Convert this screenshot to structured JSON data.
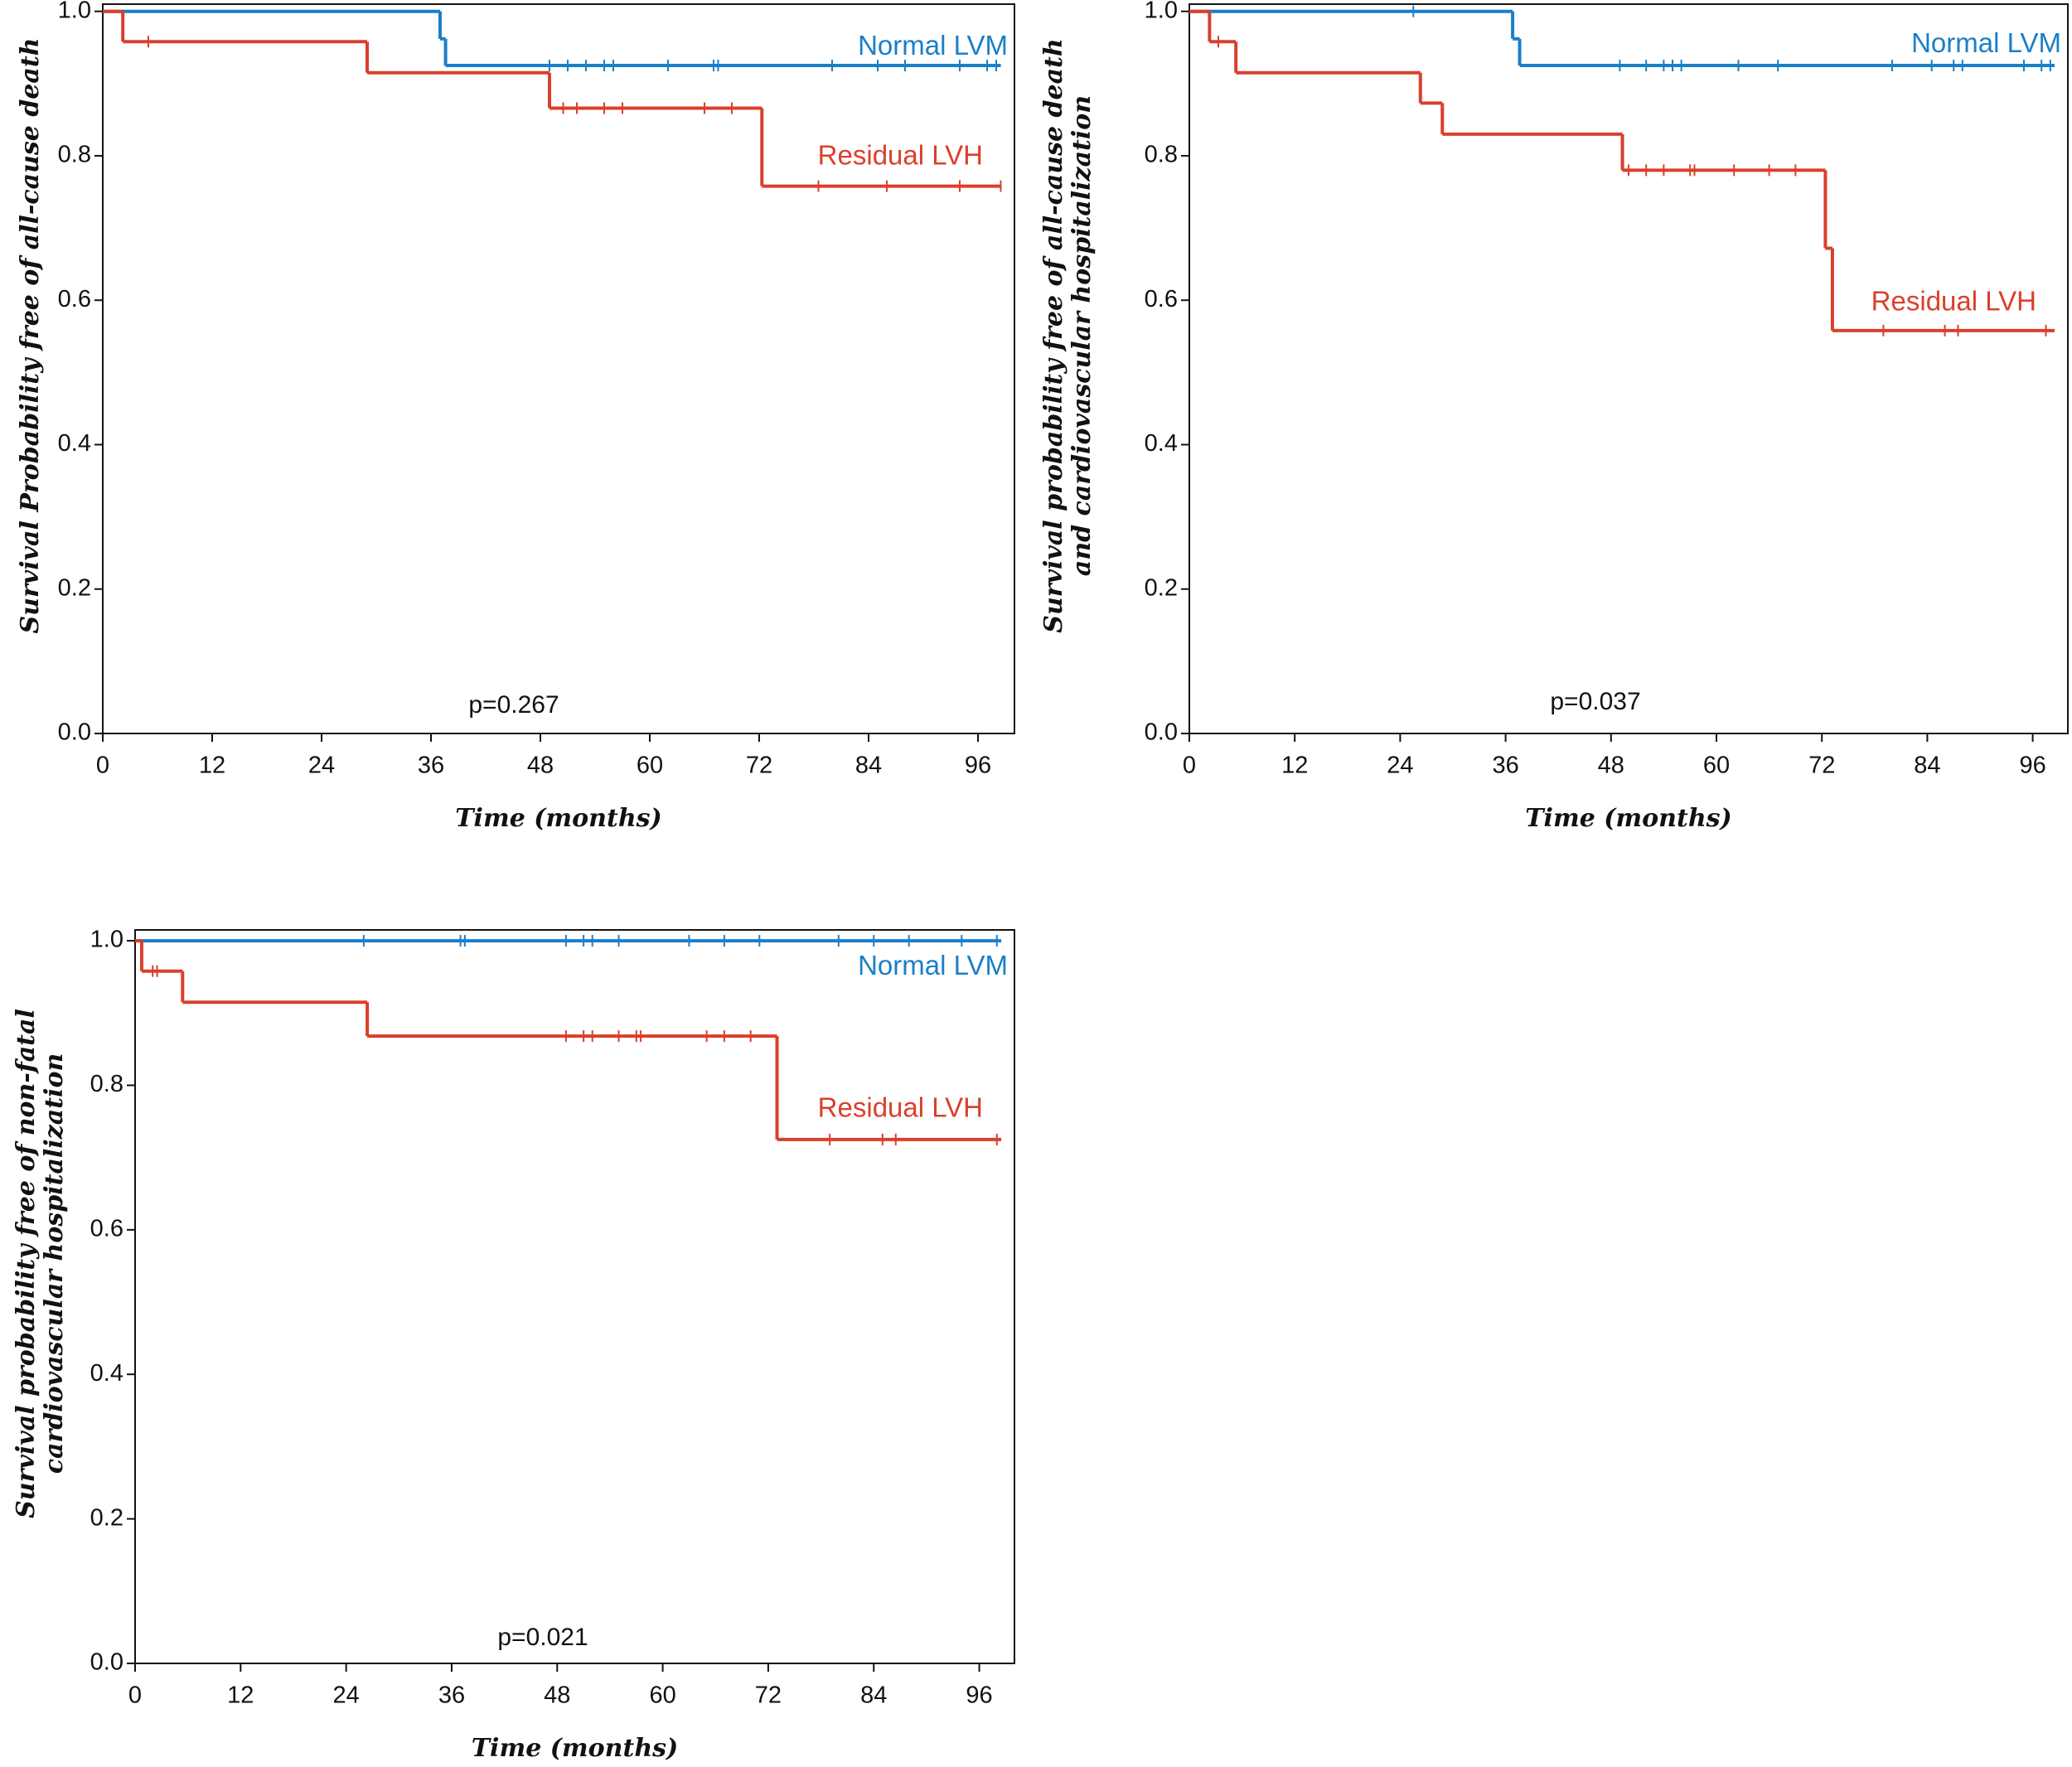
{
  "chart_data": [
    {
      "type": "line",
      "ylabel": [
        "Survival Probability free of all-cause death"
      ],
      "xlabel": "Time (months)",
      "annotation": "p=0.267",
      "xlim": [
        0,
        100
      ],
      "ylim": [
        0,
        1.01
      ],
      "xticks": [
        0,
        12,
        24,
        36,
        48,
        60,
        72,
        84,
        96
      ],
      "yticks": [
        {
          "value": 0,
          "label": "0.0"
        },
        0.2,
        0.4,
        0.6,
        0.8,
        {
          "value": 1,
          "label": "1.0"
        }
      ],
      "series": [
        {
          "name": "Normal LVM",
          "color": "#1a7fc9",
          "x": [
            0,
            37,
            37.6,
            98.5
          ],
          "values": [
            1,
            0.962,
            0.925,
            0.925
          ],
          "censored_x": [
            49,
            51,
            53,
            55,
            56,
            62,
            67,
            67.5,
            80,
            85,
            88,
            94,
            97,
            98
          ],
          "censored_values": [
            0.925,
            0.925,
            0.925,
            0.925,
            0.925,
            0.925,
            0.925,
            0.925,
            0.925,
            0.925,
            0.925,
            0.925,
            0.925,
            0.925
          ]
        },
        {
          "name": "Residual LVH",
          "color": "#d9402b",
          "x": [
            0,
            2.2,
            29,
            49,
            72.3,
            98.5
          ],
          "values": [
            1,
            0.958,
            0.915,
            0.866,
            0.758,
            0.758
          ],
          "censored_x": [
            5,
            50.5,
            52,
            55,
            57,
            66,
            69,
            78.5,
            86,
            94,
            98.5
          ],
          "censored_values": [
            0.958,
            0.866,
            0.866,
            0.866,
            0.866,
            0.866,
            0.866,
            0.758,
            0.758,
            0.758,
            0.758
          ]
        }
      ]
    },
    {
      "type": "line",
      "ylabel": [
        "Survival probability free of all-cause death",
        "and cardiovascular hospitalization"
      ],
      "xlabel": "Time (months)",
      "annotation": "p=0.037",
      "xlim": [
        0,
        100
      ],
      "ylim": [
        0,
        1.01
      ],
      "xticks": [
        0,
        12,
        24,
        36,
        48,
        60,
        72,
        84,
        96
      ],
      "yticks": [
        {
          "value": 0,
          "label": "0.0"
        },
        0.2,
        0.4,
        0.6,
        0.8,
        {
          "value": 1,
          "label": "1.0"
        }
      ],
      "series": [
        {
          "name": "Normal LVM",
          "color": "#1a7fc9",
          "x": [
            0,
            36.8,
            37.6,
            98.5
          ],
          "values": [
            1,
            0.962,
            0.925,
            0.925
          ],
          "censored_x": [
            25.5,
            49,
            52,
            54,
            55,
            56,
            62.5,
            67,
            80,
            84.5,
            87,
            88,
            95,
            97,
            98
          ],
          "censored_values": [
            1,
            0.925,
            0.925,
            0.925,
            0.925,
            0.925,
            0.925,
            0.925,
            0.925,
            0.925,
            0.925,
            0.925,
            0.925,
            0.925,
            0.925
          ]
        },
        {
          "name": "Residual LVH",
          "color": "#d9402b",
          "x": [
            0,
            2.3,
            5.3,
            26.3,
            28.8,
            49.3,
            72.4,
            73.2,
            98.5
          ],
          "values": [
            1,
            0.958,
            0.915,
            0.873,
            0.83,
            0.78,
            0.672,
            0.558,
            0.558
          ],
          "censored_x": [
            3.3,
            50,
            52,
            54,
            57,
            57.5,
            62,
            66,
            69,
            79,
            86,
            87.5,
            97.5
          ],
          "censored_values": [
            0.958,
            0.78,
            0.78,
            0.78,
            0.78,
            0.78,
            0.78,
            0.78,
            0.78,
            0.558,
            0.558,
            0.558,
            0.558
          ]
        }
      ]
    },
    {
      "type": "line",
      "ylabel": [
        "Survival probability free of non-fatal",
        "cardiovascular hospitalization"
      ],
      "xlabel": "Time (months)",
      "annotation": "p=0.021",
      "xlim": [
        0,
        100
      ],
      "ylim": [
        0,
        1.015
      ],
      "xticks": [
        0,
        12,
        24,
        36,
        48,
        60,
        72,
        84,
        96
      ],
      "yticks": [
        {
          "value": 0,
          "label": "0.0"
        },
        0.2,
        0.4,
        0.6,
        0.8,
        {
          "value": 1,
          "label": "1.0"
        }
      ],
      "series": [
        {
          "name": "Normal LVM",
          "color": "#1a7fc9",
          "x": [
            0,
            98.5
          ],
          "values": [
            1,
            1
          ],
          "censored_x": [
            26,
            37,
            37.5,
            49,
            51,
            52,
            55,
            63,
            67,
            71,
            80,
            84,
            88,
            94,
            98
          ],
          "censored_values": [
            1,
            1,
            1,
            1,
            1,
            1,
            1,
            1,
            1,
            1,
            1,
            1,
            1,
            1,
            1
          ]
        },
        {
          "name": "Residual LVH",
          "color": "#d9402b",
          "x": [
            0,
            0.75,
            5.4,
            26.4,
            73,
            98.5
          ],
          "values": [
            1,
            0.958,
            0.915,
            0.868,
            0.725,
            0.725
          ],
          "censored_x": [
            2,
            2.5,
            49,
            51,
            52,
            55,
            57,
            57.5,
            65,
            67,
            70,
            79,
            85,
            86.5,
            98
          ],
          "censored_values": [
            0.958,
            0.958,
            0.868,
            0.868,
            0.868,
            0.868,
            0.868,
            0.868,
            0.868,
            0.868,
            0.868,
            0.725,
            0.725,
            0.725,
            0.725
          ]
        }
      ]
    }
  ]
}
